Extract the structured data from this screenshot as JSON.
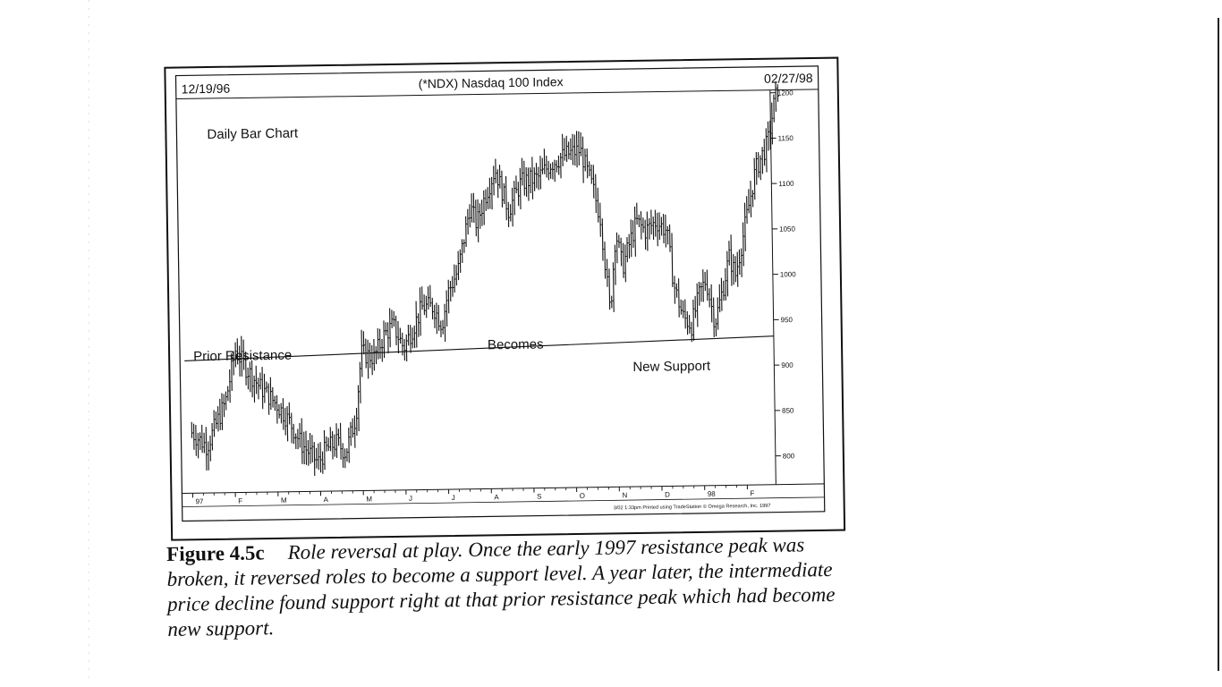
{
  "chart_data": {
    "type": "bar",
    "style": "OHLC daily bars (high-low vertical lines)",
    "title": "(*NDX) Nasdaq 100 Index",
    "start_date_label": "12/19/96",
    "end_date_label": "02/27/98",
    "chart_label": "Daily Bar Chart",
    "ylim": [
      775,
      1215
    ],
    "y_ticks": [
      800,
      850,
      900,
      950,
      1000,
      1050,
      1100,
      1150,
      1200
    ],
    "y_tick_labels": [
      "800",
      "850",
      "900",
      "950",
      "1000",
      "1050",
      "1100",
      "1150",
      "1200"
    ],
    "x_tick_labels": [
      "97",
      "F",
      "M",
      "A",
      "M",
      "J",
      "J",
      "A",
      "S",
      "O",
      "N",
      "D",
      "98",
      "F"
    ],
    "grid": false,
    "legend": "none",
    "annotations": {
      "prior_resistance": "Prior Resistance",
      "becomes": "Becomes",
      "new_support": "New Support"
    },
    "support_resistance_level": 932,
    "footer_text": "3/02 1:33pm Printed using TradeStation © Omega Research, Inc. 1997",
    "price_path": {
      "month_index": [
        0,
        0.35,
        0.8,
        1.05,
        1.3,
        1.6,
        2.0,
        2.3,
        2.55,
        2.8,
        2.95,
        3.15,
        3.4,
        3.6,
        3.85,
        4.0,
        4.3,
        4.55,
        4.75,
        5.0,
        5.2,
        5.45,
        5.7,
        5.9,
        6.05,
        6.3,
        6.6,
        6.75,
        6.95,
        7.2,
        7.5,
        7.8,
        8.2,
        8.5,
        8.85,
        9.2,
        9.5,
        9.65,
        9.85,
        10.0,
        10.15,
        10.35,
        10.5,
        10.7,
        10.95,
        11.2,
        11.35,
        11.55,
        11.75,
        11.95,
        12.1,
        12.3,
        12.5,
        12.65,
        12.8,
        13.0,
        13.3,
        13.6,
        13.75,
        13.85
      ],
      "close": [
        835,
        820,
        868,
        925,
        905,
        885,
        865,
        845,
        822,
        808,
        800,
        815,
        822,
        810,
        850,
        920,
        915,
        940,
        950,
        925,
        945,
        970,
        970,
        950,
        985,
        1010,
        1080,
        1060,
        1090,
        1120,
        1075,
        1105,
        1110,
        1125,
        1135,
        1140,
        1095,
        1065,
        960,
        1050,
        1010,
        1040,
        1060,
        1050,
        1060,
        1050,
        990,
        955,
        945,
        980,
        995,
        948,
        985,
        1020,
        1000,
        1045,
        1115,
        1145,
        1185,
        1205
      ]
    }
  },
  "caption": {
    "label": "Figure 4.5c",
    "text": "Role reversal at play. Once the early 1997 resistance peak was broken, it reversed roles to become a support level. A year later, the intermediate price decline found support right at that prior resistance peak which had become new support."
  }
}
